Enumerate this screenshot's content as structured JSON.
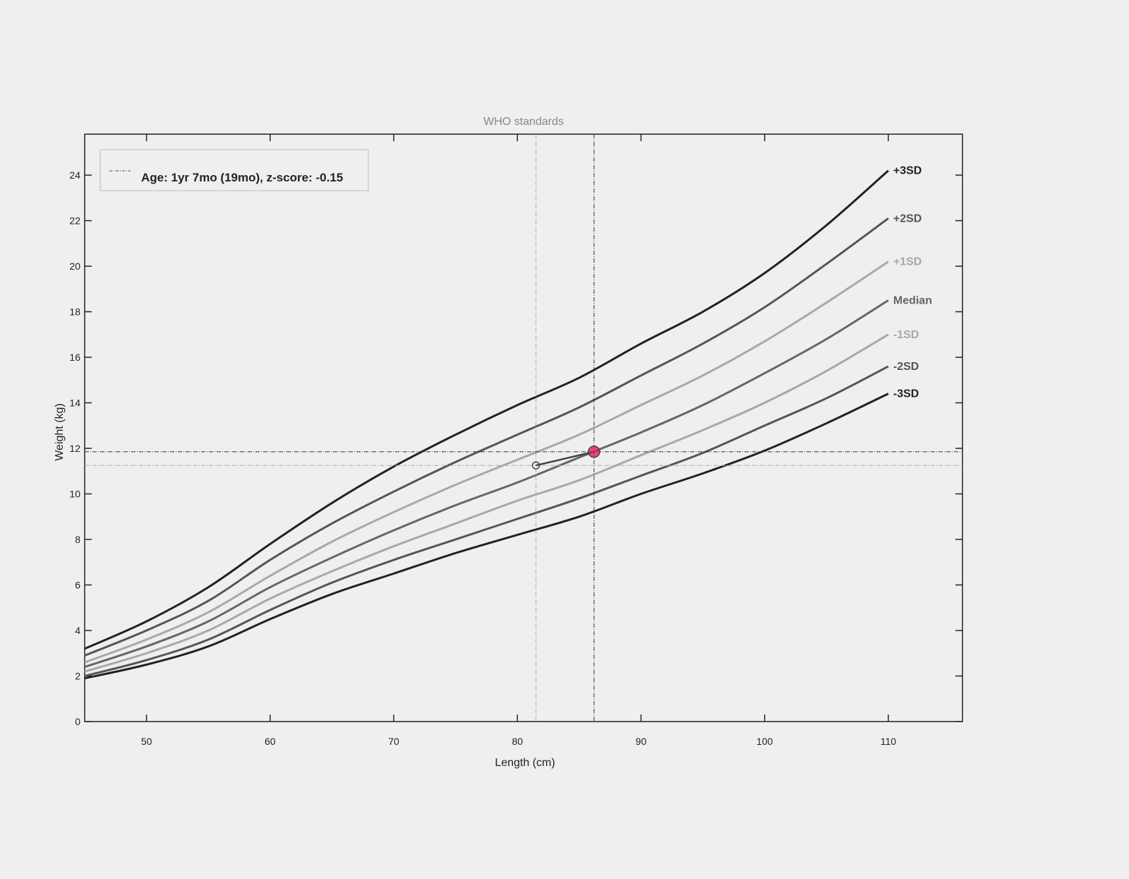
{
  "chart_data": {
    "type": "line",
    "title": "WHO standards",
    "x_label": "Length (cm)",
    "y_label": "Weight (kg)",
    "xlim": [
      45,
      116
    ],
    "ylim": [
      0,
      25.8
    ],
    "xticks": [
      50,
      60,
      70,
      80,
      90,
      100,
      110
    ],
    "yticks": [
      0,
      2,
      4,
      6,
      8,
      10,
      12,
      14,
      16,
      18,
      20,
      22,
      24
    ],
    "x": [
      45,
      50,
      55,
      60,
      65,
      70,
      75,
      80,
      85,
      90,
      95,
      100,
      105,
      110
    ],
    "series": [
      {
        "name": "+3SD",
        "color": "#222222",
        "values": [
          3.2,
          4.4,
          5.9,
          7.8,
          9.6,
          11.2,
          12.6,
          13.9,
          15.1,
          16.6,
          18.0,
          19.7,
          21.8,
          24.2
        ]
      },
      {
        "name": "+2SD",
        "color": "#555555",
        "values": [
          2.9,
          4.0,
          5.3,
          7.1,
          8.7,
          10.1,
          11.4,
          12.6,
          13.8,
          15.2,
          16.6,
          18.2,
          20.1,
          22.1
        ]
      },
      {
        "name": "+1SD",
        "color": "#a8a8a8",
        "values": [
          2.6,
          3.6,
          4.8,
          6.4,
          7.9,
          9.2,
          10.4,
          11.5,
          12.6,
          13.9,
          15.2,
          16.7,
          18.4,
          20.2
        ]
      },
      {
        "name": "Median",
        "color": "#666666",
        "values": [
          2.4,
          3.3,
          4.4,
          5.9,
          7.2,
          8.4,
          9.5,
          10.5,
          11.6,
          12.7,
          13.9,
          15.3,
          16.8,
          18.5
        ]
      },
      {
        "name": "-1SD",
        "color": "#a8a8a8",
        "values": [
          2.2,
          3.0,
          4.0,
          5.4,
          6.6,
          7.7,
          8.7,
          9.7,
          10.6,
          11.7,
          12.8,
          14.0,
          15.4,
          17.0
        ]
      },
      {
        "name": "-2SD",
        "color": "#555555",
        "values": [
          2.0,
          2.7,
          3.6,
          4.9,
          6.1,
          7.1,
          8.0,
          8.9,
          9.8,
          10.8,
          11.8,
          13.0,
          14.2,
          15.6
        ]
      },
      {
        "name": "-3SD",
        "color": "#222222",
        "values": [
          1.9,
          2.5,
          3.3,
          4.5,
          5.6,
          6.5,
          7.4,
          8.2,
          9.0,
          10.0,
          10.9,
          11.9,
          13.1,
          14.4
        ]
      }
    ],
    "child": {
      "name": "Age: 1yr 7mo (19mo), z-score: -0.15",
      "color": "#444444",
      "highlight_color": "#e0245e",
      "x": [
        81.5,
        86.2
      ],
      "values": [
        11.25,
        11.85
      ]
    }
  }
}
